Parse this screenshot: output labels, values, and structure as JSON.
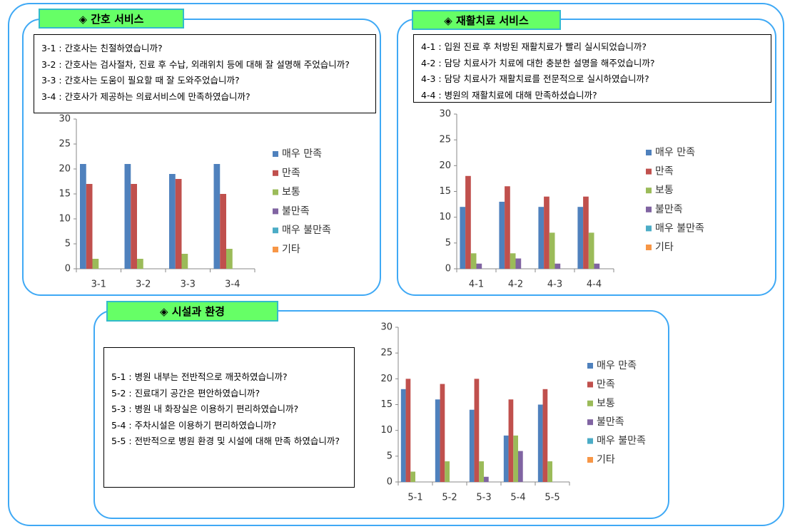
{
  "chart_data": [
    {
      "type": "bar",
      "title": "◈ 간호 서비스",
      "questions": [
        "3-1 : 간호사는 친절하였습니까?",
        "3-2 : 간호사는 검사절차, 진료 후 수납, 외래위치 등에 대해 잘 설명해 주었습니까?",
        "3-3 : 간호사는 도움이 필요할 때 잘 도와주었습니까?",
        "3-4 : 간호사가 제공하는 의료서비스에 만족하였습니까?"
      ],
      "categories": [
        "3-1",
        "3-2",
        "3-3",
        "3-4"
      ],
      "series": [
        {
          "name": "매우 만족",
          "color": "#4f81bd",
          "values": [
            21,
            21,
            19,
            21
          ]
        },
        {
          "name": "만족",
          "color": "#c0504d",
          "values": [
            17,
            17,
            18,
            15
          ]
        },
        {
          "name": "보통",
          "color": "#9bbb59",
          "values": [
            2,
            2,
            3,
            4
          ]
        },
        {
          "name": "불만족",
          "color": "#8064a2",
          "values": [
            0,
            0,
            0,
            0
          ]
        },
        {
          "name": "매우 불만족",
          "color": "#4bacc6",
          "values": [
            0,
            0,
            0,
            0
          ]
        },
        {
          "name": "기타",
          "color": "#f79646",
          "values": [
            0,
            0,
            0,
            0
          ]
        }
      ],
      "ylim": [
        0,
        30
      ],
      "yticks": [
        0,
        5,
        10,
        15,
        20,
        25,
        30
      ]
    },
    {
      "type": "bar",
      "title": "◈ 재활치료 서비스",
      "questions": [
        "4-1 : 입원 진료 후 처방된 재활치료가 빨리 실시되었습니까?",
        "4-2 : 담당 치료사가 치료에 대한 충분한 설명을 해주었습니까?",
        "4-3 : 담당 치료사가 재활치료를 전문적으로 실시하였습니까?",
        "4-4 : 병원의 재활치료에 대해 만족하셨습니까?"
      ],
      "categories": [
        "4-1",
        "4-2",
        "4-3",
        "4-4"
      ],
      "series": [
        {
          "name": "매우 만족",
          "color": "#4f81bd",
          "values": [
            12,
            13,
            12,
            12
          ]
        },
        {
          "name": "만족",
          "color": "#c0504d",
          "values": [
            18,
            16,
            14,
            14
          ]
        },
        {
          "name": "보통",
          "color": "#9bbb59",
          "values": [
            3,
            3,
            7,
            7
          ]
        },
        {
          "name": "불만족",
          "color": "#8064a2",
          "values": [
            1,
            2,
            1,
            1
          ]
        },
        {
          "name": "매우 불만족",
          "color": "#4bacc6",
          "values": [
            0,
            0,
            0,
            0
          ]
        },
        {
          "name": "기타",
          "color": "#f79646",
          "values": [
            0,
            0,
            0,
            0
          ]
        }
      ],
      "ylim": [
        0,
        30
      ],
      "yticks": [
        0,
        5,
        10,
        15,
        20,
        25,
        30
      ]
    },
    {
      "type": "bar",
      "title": "◈ 시설과 환경",
      "questions": [
        "5-1 : 병원 내부는 전반적으로 깨끗하였습니까?",
        "5-2 : 진료대기 공간은 편안하였습니까?",
        "5-3 : 병원 내 화장실은 이용하기 편리하였습니까?",
        "5-4 : 주차시설은 이용하기 편리하였습니까?",
        "5-5 : 전반적으로 병원 환경 및 시설에 대해 만족 하였습니까?"
      ],
      "categories": [
        "5-1",
        "5-2",
        "5-3",
        "5-4",
        "5-5"
      ],
      "series": [
        {
          "name": "매우 만족",
          "color": "#4f81bd",
          "values": [
            18,
            16,
            14,
            9,
            15
          ]
        },
        {
          "name": "만족",
          "color": "#c0504d",
          "values": [
            20,
            19,
            20,
            16,
            18
          ]
        },
        {
          "name": "보통",
          "color": "#9bbb59",
          "values": [
            2,
            4,
            4,
            9,
            4
          ]
        },
        {
          "name": "불만족",
          "color": "#8064a2",
          "values": [
            0,
            0,
            1,
            6,
            0
          ]
        },
        {
          "name": "매우 불만족",
          "color": "#4bacc6",
          "values": [
            0,
            0,
            0,
            0,
            0
          ]
        },
        {
          "name": "기타",
          "color": "#f79646",
          "values": [
            0,
            0,
            0,
            0,
            0
          ]
        }
      ],
      "ylim": [
        0,
        30
      ],
      "yticks": [
        0,
        5,
        10,
        15,
        20,
        25,
        30
      ]
    }
  ]
}
